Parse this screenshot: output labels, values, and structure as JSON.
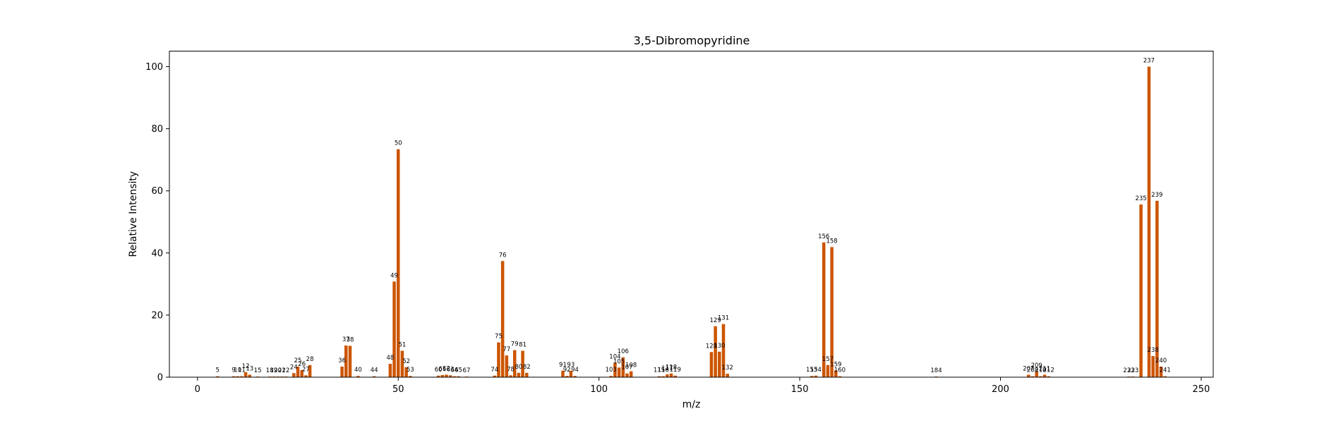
{
  "chart_data": {
    "type": "bar",
    "title": "3,5-Dibromopyridine",
    "xlabel": "m/z",
    "ylabel": "Relative Intensity",
    "xlim": [
      -7,
      253
    ],
    "ylim": [
      0,
      105
    ],
    "xticks": [
      0,
      50,
      100,
      150,
      200,
      250
    ],
    "yticks": [
      0,
      20,
      40,
      60,
      80,
      100
    ],
    "grid": false,
    "bar_color": "#cc5500",
    "peaks": [
      {
        "mz": 5,
        "intensity": 0.3
      },
      {
        "mz": 9,
        "intensity": 0.3
      },
      {
        "mz": 10,
        "intensity": 0.3
      },
      {
        "mz": 11,
        "intensity": 0.3
      },
      {
        "mz": 12,
        "intensity": 1.6
      },
      {
        "mz": 13,
        "intensity": 0.8
      },
      {
        "mz": 15,
        "intensity": 0.2
      },
      {
        "mz": 18,
        "intensity": 0.2
      },
      {
        "mz": 19,
        "intensity": 0.2
      },
      {
        "mz": 20,
        "intensity": 0.2
      },
      {
        "mz": 21,
        "intensity": 0.2
      },
      {
        "mz": 22,
        "intensity": 0.2
      },
      {
        "mz": 24,
        "intensity": 1.3
      },
      {
        "mz": 25,
        "intensity": 3.4
      },
      {
        "mz": 26,
        "intensity": 2.3
      },
      {
        "mz": 27,
        "intensity": 0.6
      },
      {
        "mz": 28,
        "intensity": 3.9
      },
      {
        "mz": 36,
        "intensity": 3.4
      },
      {
        "mz": 37,
        "intensity": 10.2
      },
      {
        "mz": 38,
        "intensity": 10.1
      },
      {
        "mz": 40,
        "intensity": 0.4
      },
      {
        "mz": 44,
        "intensity": 0.3
      },
      {
        "mz": 48,
        "intensity": 4.3
      },
      {
        "mz": 49,
        "intensity": 30.8
      },
      {
        "mz": 50,
        "intensity": 73.4
      },
      {
        "mz": 51,
        "intensity": 8.5
      },
      {
        "mz": 52,
        "intensity": 3.2
      },
      {
        "mz": 53,
        "intensity": 0.4
      },
      {
        "mz": 60,
        "intensity": 0.5
      },
      {
        "mz": 61,
        "intensity": 0.7
      },
      {
        "mz": 62,
        "intensity": 0.8
      },
      {
        "mz": 63,
        "intensity": 0.6
      },
      {
        "mz": 64,
        "intensity": 0.3
      },
      {
        "mz": 65,
        "intensity": 0.3
      },
      {
        "mz": 67,
        "intensity": 0.2
      },
      {
        "mz": 74,
        "intensity": 0.5
      },
      {
        "mz": 75,
        "intensity": 11.2
      },
      {
        "mz": 76,
        "intensity": 37.4
      },
      {
        "mz": 77,
        "intensity": 7.0
      },
      {
        "mz": 78,
        "intensity": 0.6
      },
      {
        "mz": 79,
        "intensity": 8.7
      },
      {
        "mz": 80,
        "intensity": 1.4
      },
      {
        "mz": 81,
        "intensity": 8.5
      },
      {
        "mz": 82,
        "intensity": 1.4
      },
      {
        "mz": 91,
        "intensity": 2.1
      },
      {
        "mz": 92,
        "intensity": 0.4
      },
      {
        "mz": 93,
        "intensity": 2.1
      },
      {
        "mz": 94,
        "intensity": 0.4
      },
      {
        "mz": 103,
        "intensity": 0.4
      },
      {
        "mz": 104,
        "intensity": 4.7
      },
      {
        "mz": 105,
        "intensity": 3.1
      },
      {
        "mz": 106,
        "intensity": 6.4
      },
      {
        "mz": 107,
        "intensity": 1.2
      },
      {
        "mz": 108,
        "intensity": 1.9
      },
      {
        "mz": 115,
        "intensity": 0.3
      },
      {
        "mz": 116,
        "intensity": 0.3
      },
      {
        "mz": 117,
        "intensity": 0.9
      },
      {
        "mz": 118,
        "intensity": 1.2
      },
      {
        "mz": 119,
        "intensity": 0.5
      },
      {
        "mz": 128,
        "intensity": 8.1
      },
      {
        "mz": 129,
        "intensity": 16.4
      },
      {
        "mz": 130,
        "intensity": 8.2
      },
      {
        "mz": 131,
        "intensity": 17.1
      },
      {
        "mz": 132,
        "intensity": 1.1
      },
      {
        "mz": 153,
        "intensity": 0.4
      },
      {
        "mz": 154,
        "intensity": 0.5
      },
      {
        "mz": 156,
        "intensity": 43.4
      },
      {
        "mz": 157,
        "intensity": 3.9
      },
      {
        "mz": 158,
        "intensity": 41.9
      },
      {
        "mz": 159,
        "intensity": 2.2
      },
      {
        "mz": 160,
        "intensity": 0.3
      },
      {
        "mz": 184,
        "intensity": 0.2
      },
      {
        "mz": 207,
        "intensity": 0.8
      },
      {
        "mz": 208,
        "intensity": 0.3
      },
      {
        "mz": 209,
        "intensity": 1.8
      },
      {
        "mz": 210,
        "intensity": 0.3
      },
      {
        "mz": 211,
        "intensity": 0.8
      },
      {
        "mz": 212,
        "intensity": 0.3
      },
      {
        "mz": 232,
        "intensity": 0.2
      },
      {
        "mz": 233,
        "intensity": 0.2
      },
      {
        "mz": 235,
        "intensity": 55.6
      },
      {
        "mz": 237,
        "intensity": 100.0
      },
      {
        "mz": 238,
        "intensity": 6.8
      },
      {
        "mz": 239,
        "intensity": 56.8
      },
      {
        "mz": 240,
        "intensity": 3.4
      },
      {
        "mz": 241,
        "intensity": 0.3
      }
    ]
  }
}
